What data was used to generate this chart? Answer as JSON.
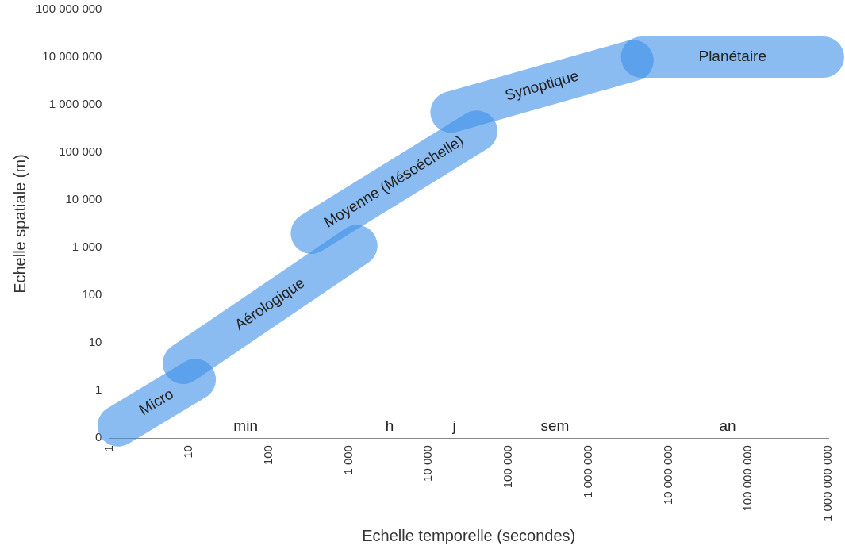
{
  "chart_data": {
    "type": "line",
    "xlabel": "Echelle temporelle (secondes)",
    "ylabel": "Echelle spatiale (m)",
    "log": "xy",
    "grid": false,
    "legend": false,
    "marker": "none",
    "line_style": "solid",
    "xlim": [
      1,
      1000000000
    ],
    "ylim": [
      0.1,
      100000000
    ],
    "xticks": [
      {
        "value": 1,
        "label": "1"
      },
      {
        "value": 10,
        "label": "10"
      },
      {
        "value": 100,
        "label": "100"
      },
      {
        "value": 1000,
        "label": "1 000"
      },
      {
        "value": 10000,
        "label": "10 000"
      },
      {
        "value": 100000,
        "label": "100 000"
      },
      {
        "value": 1000000,
        "label": "1 000 000"
      },
      {
        "value": 10000000,
        "label": "10 000 000"
      },
      {
        "value": 100000000,
        "label": "100 000 000"
      },
      {
        "value": 1000000000,
        "label": "1 000 000 000"
      }
    ],
    "yticks": [
      {
        "value": 0.1,
        "label": "0"
      },
      {
        "value": 1,
        "label": "1"
      },
      {
        "value": 10,
        "label": "10"
      },
      {
        "value": 100,
        "label": "100"
      },
      {
        "value": 1000,
        "label": "1 000"
      },
      {
        "value": 10000,
        "label": "10 000"
      },
      {
        "value": 100000,
        "label": "100 000"
      },
      {
        "value": 1000000,
        "label": "1 000 000"
      },
      {
        "value": 10000000,
        "label": "10 000 000"
      },
      {
        "value": 100000000,
        "label": "100 000 000"
      }
    ],
    "series": [
      {
        "name": "Micro",
        "color": "#3d8fe8",
        "x": [
          1.3,
          12
        ],
        "values": [
          0.18,
          1.7
        ]
      },
      {
        "name": "Aérologique",
        "color": "#3d8fe8",
        "x": [
          8.5,
          1260
        ],
        "values": [
          3.7,
          1100
        ]
      },
      {
        "name": "Moyenne (Mésoéchelle)",
        "color": "#3d8fe8",
        "x": [
          340,
          40000
        ],
        "values": [
          2000,
          280000
        ]
      },
      {
        "name": "Synoptique",
        "color": "#3d8fe8",
        "x": [
          19000,
          3600000
        ],
        "values": [
          700000,
          8500000
        ]
      },
      {
        "name": "Planétaire",
        "color": "#3d8fe8",
        "x": [
          4600000,
          870000000
        ],
        "values": [
          10000000,
          10000000
        ]
      }
    ],
    "annotations": [
      "min",
      "h",
      "j",
      "sem",
      "an"
    ]
  }
}
